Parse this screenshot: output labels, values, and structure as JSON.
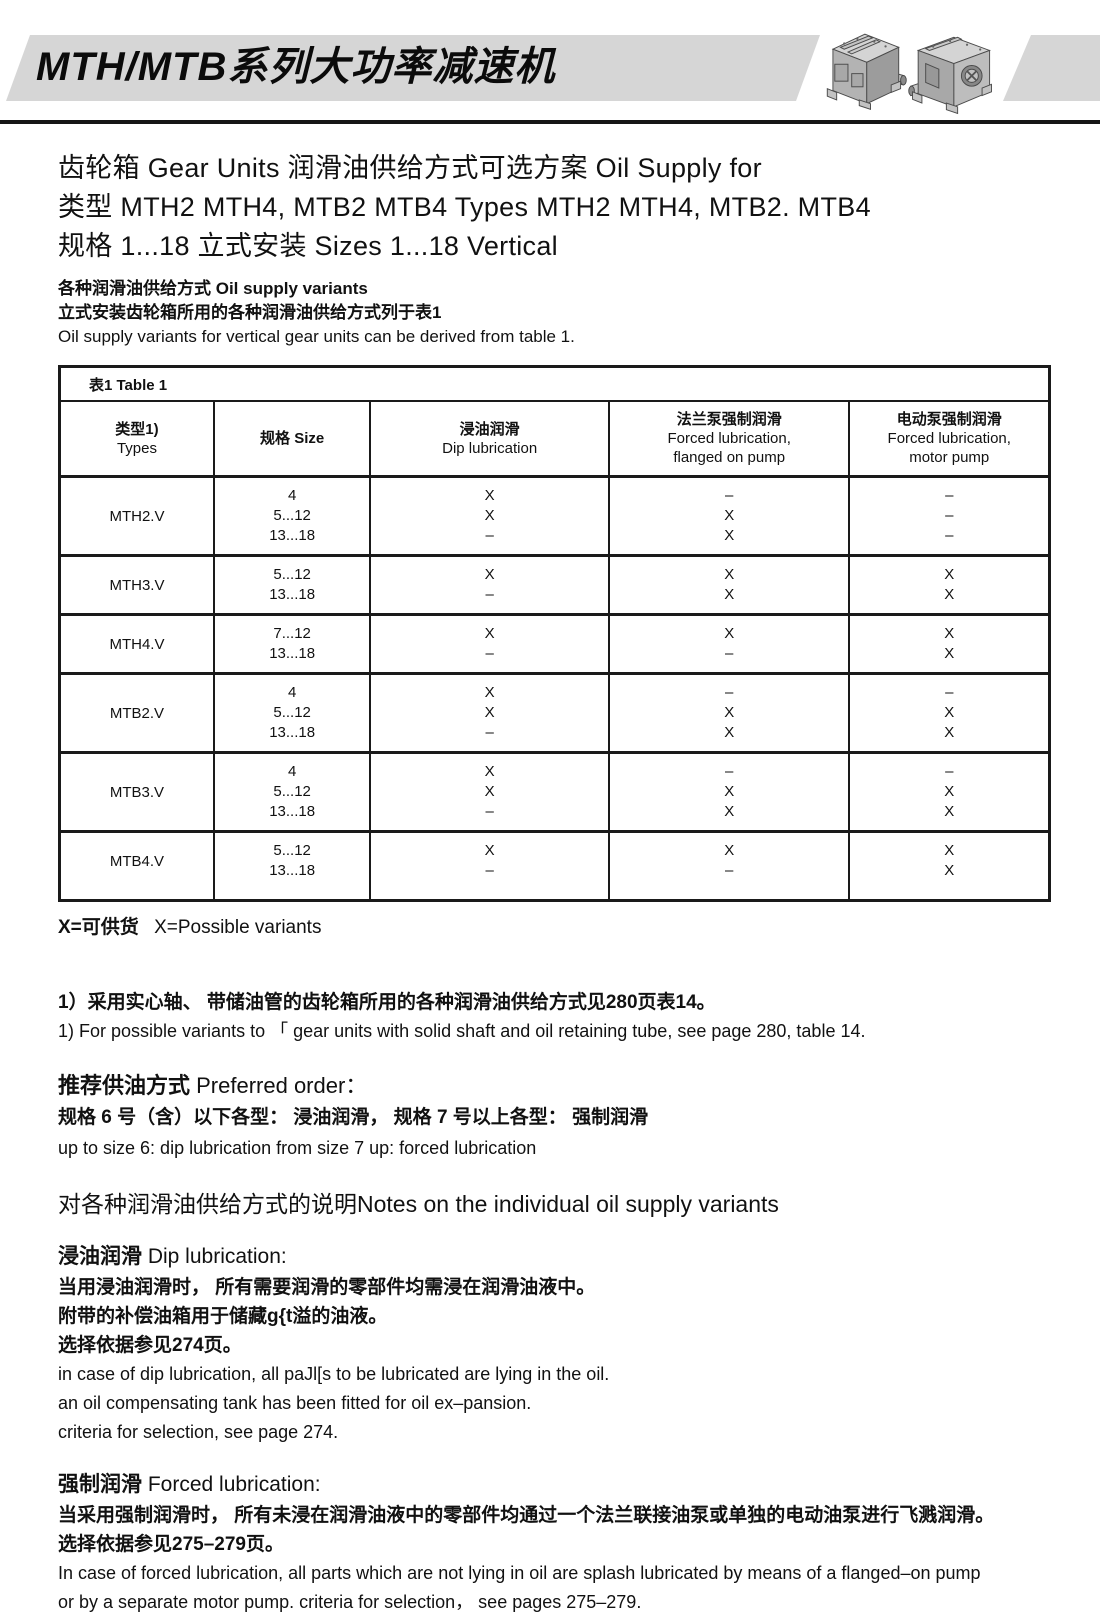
{
  "banner": {
    "title": "MTH/MTB系列大功率减速机"
  },
  "intro": {
    "title_lines": [
      "齿轮箱 Gear Units  润滑油供给方式可选方案 Oil Supply for",
      "类型 MTH2 MTH4, MTB2 MTB4 Types MTH2 MTH4, MTB2. MTB4",
      "规格 1...18 立式安装 Sizes 1...18 Vertical"
    ],
    "notes": [
      {
        "text": "各种润滑油供给方式 Oil supply variants",
        "lang": "zh"
      },
      {
        "text": "立式安装齿轮箱所用的各种润滑油供给方式列于表1",
        "lang": "zh"
      },
      {
        "text": "Oil supply variants for vertical gear units can be derived from table 1.",
        "lang": "en"
      }
    ]
  },
  "table": {
    "caption": "表1 Table 1",
    "columns": [
      {
        "lines": [
          "类型1)",
          "Types"
        ]
      },
      {
        "lines": [
          "规格 Size"
        ]
      },
      {
        "lines": [
          "浸油润滑",
          "Dip lubrication"
        ]
      },
      {
        "lines": [
          "法兰泵强制润滑",
          "Forced lubrication,",
          "flanged on pump"
        ]
      },
      {
        "lines": [
          "电动泵强制润滑",
          "Forced lubrication,",
          "motor pump"
        ]
      }
    ],
    "rows": [
      {
        "type": "MTH2.V",
        "sizes": [
          "4",
          "5...12",
          "13...18"
        ],
        "dip": [
          "X",
          "X",
          "–"
        ],
        "flanged": [
          "–",
          "X",
          "X"
        ],
        "motor": [
          "–",
          "–",
          "–"
        ]
      },
      {
        "type": "MTH3.V",
        "sizes": [
          "5...12",
          "13...18"
        ],
        "dip": [
          "X",
          "–"
        ],
        "flanged": [
          "X",
          "X"
        ],
        "motor": [
          "X",
          "X"
        ]
      },
      {
        "type": "MTH4.V",
        "sizes": [
          "7...12",
          "13...18"
        ],
        "dip": [
          "X",
          "–"
        ],
        "flanged": [
          "X",
          "–"
        ],
        "motor": [
          "X",
          "X"
        ]
      },
      {
        "type": "MTB2.V",
        "sizes": [
          "4",
          "5...12",
          "13...18"
        ],
        "dip": [
          "X",
          "X",
          "–"
        ],
        "flanged": [
          "–",
          "X",
          "X"
        ],
        "motor": [
          "–",
          "X",
          "X"
        ]
      },
      {
        "type": "MTB3.V",
        "sizes": [
          "4",
          "5...12",
          "13...18"
        ],
        "dip": [
          "X",
          "X",
          "–"
        ],
        "flanged": [
          "–",
          "X",
          "X"
        ],
        "motor": [
          "–",
          "X",
          "X"
        ]
      },
      {
        "type": "MTB4.V",
        "sizes": [
          "5...12",
          "13...18"
        ],
        "dip": [
          "X",
          "–"
        ],
        "flanged": [
          "X",
          "–"
        ],
        "motor": [
          "X",
          "X"
        ]
      }
    ]
  },
  "legend": {
    "zh": "X=可供货",
    "en": "X=Possible variants"
  },
  "footnote": {
    "lines": [
      {
        "text": "1）采用实心轴、 带储油管的齿轮箱所用的各种润滑油供给方式见280页表14。",
        "lang": "zh"
      },
      {
        "text": "1) For possible variants to 「 gear units with solid shaft and oil retaining tube, see page 280, table 14.",
        "lang": "en"
      }
    ]
  },
  "preferred": {
    "heading_zh": "推荐供油方式",
    "heading_en": " Preferred order：",
    "lines": [
      {
        "text": "规格 6 号（含）以下各型： 浸油润滑， 规格 7 号以上各型： 强制润滑",
        "lang": "zh"
      },
      {
        "text": "up to size 6: dip lubrication from size 7 up: forced lubrication",
        "lang": "en"
      }
    ]
  },
  "notes_heading": "对各种润滑油供给方式的说明Notes on the individual oil supply variants",
  "dip": {
    "heading_zh": "浸油润滑",
    "heading_en": " Dip lubrication:",
    "lines": [
      {
        "text": "当用浸油润滑时， 所有需要润滑的零部件均需浸在润滑油液中。",
        "lang": "zh"
      },
      {
        "text": "附带的补偿油箱用于储藏g{t溢的油液。",
        "lang": "zh"
      },
      {
        "text": "选择依据参见274页。",
        "lang": "zh"
      },
      {
        "text": "in case of dip lubrication, all paJl[s to be lubricated are lying in the oil.",
        "lang": "en"
      },
      {
        "text": "an oil compensating tank has been fitted for oil ex–pansion.",
        "lang": "en"
      },
      {
        "text": "criteria for  selection, see page 274.",
        "lang": "en"
      }
    ]
  },
  "forced": {
    "heading_zh": "强制润滑",
    "heading_en": " Forced lubrication:",
    "lines": [
      {
        "text": "当采用强制润滑时， 所有未浸在润滑油液中的零部件均通过一个法兰联接油泵或单独的电动油泵进行飞溅润滑。",
        "lang": "zh"
      },
      {
        "text": "选择依据参见275–279页。",
        "lang": "zh"
      },
      {
        "text": "In case of forced lubrication, all parts which are not lying in oil are splash lubricated by means of a flanged–on pump",
        "lang": "en"
      },
      {
        "text": "or by a separate motor pump. criteria for selection， see pages 275–279.",
        "lang": "en"
      }
    ]
  }
}
